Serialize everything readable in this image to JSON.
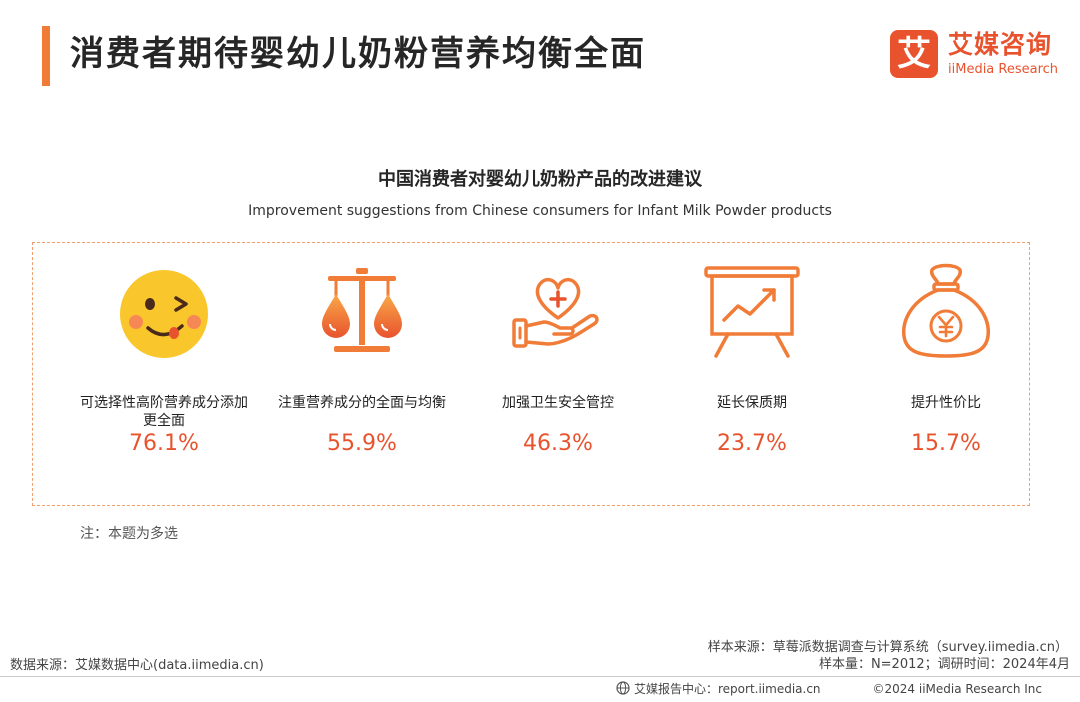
{
  "header": {
    "title": "消费者期待婴幼儿奶粉营养均衡全面",
    "logo_mark": "艾",
    "logo_cn": "艾媒咨询",
    "logo_en": "iiMedia Research"
  },
  "chart_data": {
    "type": "table",
    "title": "中国消费者对婴幼儿奶粉产品的改进建议",
    "subtitle": "Improvement suggestions from Chinese consumers for Infant Milk Powder products",
    "categories": [
      "可选择性高阶营养成分添加更全面",
      "注重营养成分的全面与均衡",
      "加强卫生安全管控",
      "延长保质期",
      "提升性价比"
    ],
    "values": [
      76.1,
      55.9,
      46.3,
      23.7,
      15.7
    ],
    "value_labels": [
      "76.1%",
      "55.9%",
      "46.3%",
      "23.7%",
      "15.7%"
    ],
    "unit": "%"
  },
  "items": [
    {
      "icon": "smiley-face-icon",
      "label": "可选择性高阶营养成分添加更全面"
    },
    {
      "icon": "balance-scale-icon",
      "label": "注重营养成分的全面与均衡"
    },
    {
      "icon": "hand-heart-icon",
      "label": "加强卫生安全管控"
    },
    {
      "icon": "growth-board-icon",
      "label": "延长保质期"
    },
    {
      "icon": "money-bag-icon",
      "label": "提升性价比"
    }
  ],
  "note": "注：本题为多选",
  "footer": {
    "sample_source": "样本来源：草莓派数据调查与计算系统（survey.iimedia.cn）",
    "sample_size": "样本量：N=2012；调研时间：2024年4月",
    "data_source": "数据来源：艾媒数据中心(data.iimedia.cn)",
    "report_center": "艾媒报告中心：report.iimedia.cn",
    "copyright": "©2024  iiMedia Research  Inc"
  },
  "colors": {
    "accent": "#f07c38",
    "value": "#e8532e",
    "icon_orange": "#f07c38",
    "smiley_yellow": "#f9c62b"
  }
}
